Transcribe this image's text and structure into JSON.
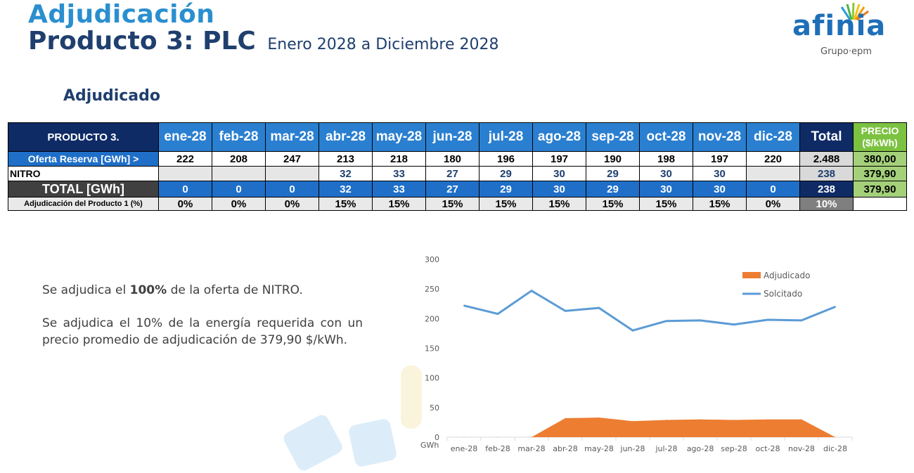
{
  "header": {
    "title_line1": "Adjudicación",
    "title_line2": "Producto 3: PLC",
    "period": "Enero 2028 a Diciembre 2028"
  },
  "logo": {
    "word": "afinia",
    "sub": "Grupo·epm"
  },
  "section_title": "Adjudicado",
  "table": {
    "corner": "PRODUCTO 3.",
    "months": [
      "ene-28",
      "feb-28",
      "mar-28",
      "abr-28",
      "may-28",
      "jun-28",
      "jul-28",
      "ago-28",
      "sep-28",
      "oct-28",
      "nov-28",
      "dic-28"
    ],
    "total_header": "Total",
    "price_header_1": "PRECIO",
    "price_header_2": "($/kWh)",
    "rows": [
      {
        "label": "Oferta Reserva [GWh] >",
        "values": [
          "222",
          "208",
          "247",
          "213",
          "218",
          "180",
          "196",
          "197",
          "190",
          "198",
          "197",
          "220"
        ],
        "total": "2.488",
        "price": "380,00"
      },
      {
        "label": "NITRO",
        "values": [
          "",
          "",
          "",
          "32",
          "33",
          "27",
          "29",
          "30",
          "29",
          "30",
          "30",
          ""
        ],
        "total": "238",
        "price": "379,90"
      },
      {
        "label": "TOTAL [GWh]",
        "values": [
          "0",
          "0",
          "0",
          "32",
          "33",
          "27",
          "29",
          "30",
          "29",
          "30",
          "30",
          "0"
        ],
        "total": "238",
        "price": "379,90"
      },
      {
        "label": "Adjudicación del Producto 1 (%)",
        "values": [
          "0%",
          "0%",
          "0%",
          "15%",
          "15%",
          "15%",
          "15%",
          "15%",
          "15%",
          "15%",
          "15%",
          "0%"
        ],
        "total": "10%",
        "price": ""
      }
    ]
  },
  "text": {
    "p1_pre": "Se adjudica el ",
    "p1_bold": "100%",
    "p1_post": " de la oferta de NITRO.",
    "p2": "Se adjudica el 10% de la energía requerida con un precio promedio de adjudicación de 379,90 $/kWh."
  },
  "chart_data": {
    "type": "line",
    "categories": [
      "ene-28",
      "feb-28",
      "mar-28",
      "abr-28",
      "may-28",
      "jun-28",
      "jul-28",
      "ago-28",
      "sep-28",
      "oct-28",
      "nov-28",
      "dic-28"
    ],
    "series": [
      {
        "name": "Adjudicado",
        "kind": "area",
        "color": "#ed7d31",
        "values": [
          0,
          0,
          0,
          32,
          33,
          27,
          29,
          30,
          29,
          30,
          30,
          0
        ]
      },
      {
        "name": "Solcitado",
        "kind": "line",
        "color": "#5b9bd5",
        "values": [
          222,
          208,
          247,
          213,
          218,
          180,
          196,
          197,
          190,
          198,
          197,
          220
        ]
      }
    ],
    "ylim": [
      0,
      300
    ],
    "yticks": [
      0,
      50,
      100,
      150,
      200,
      250,
      300
    ],
    "ylabel": "GWh",
    "legend": "top-right"
  }
}
